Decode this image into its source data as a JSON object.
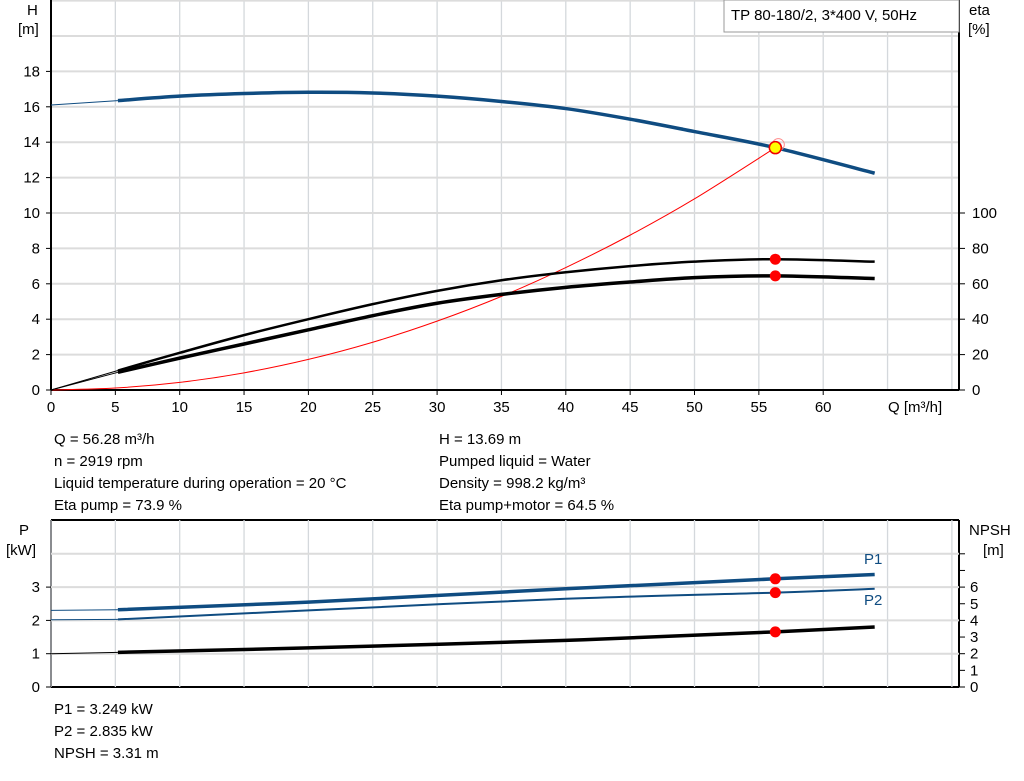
{
  "chart_data": [
    {
      "type": "line",
      "title": "TP 80-180/2, 3*400 V, 50Hz",
      "xlabel": "Q [m³/h]",
      "ylabel": "H\n[m]",
      "ylabel_right": "eta\n[%]",
      "xlim": [
        0,
        70
      ],
      "ylim": [
        0,
        22
      ],
      "ylim_right": [
        0,
        220
      ],
      "x_ticks": [
        0,
        5,
        10,
        15,
        20,
        25,
        30,
        35,
        40,
        45,
        50,
        55,
        60
      ],
      "y_ticks": [
        0,
        2,
        4,
        6,
        8,
        10,
        12,
        14,
        16,
        18
      ],
      "y_right_ticks": [
        0,
        20,
        40,
        60,
        80,
        100
      ],
      "grid": true,
      "series": [
        {
          "name": "H",
          "axis": "left",
          "color": "#0f4c81",
          "x": [
            0,
            5.2,
            10,
            15,
            20,
            25,
            30,
            35,
            40,
            45,
            50,
            56.28,
            64
          ],
          "y": [
            16.1,
            16.35,
            16.6,
            16.75,
            16.82,
            16.78,
            16.6,
            16.3,
            15.9,
            15.3,
            14.6,
            13.69,
            12.25
          ]
        },
        {
          "name": "Eta pump",
          "axis": "right",
          "color": "#000000",
          "x": [
            0,
            5.2,
            10,
            15,
            20,
            25,
            30,
            35,
            40,
            45,
            50,
            56.28,
            64
          ],
          "y": [
            0,
            11,
            21,
            31,
            40,
            48.5,
            56,
            62,
            66.5,
            70,
            72.5,
            73.9,
            72.5
          ]
        },
        {
          "name": "Eta pump+motor",
          "axis": "right",
          "color": "#000000",
          "x": [
            0,
            5.2,
            10,
            15,
            20,
            25,
            30,
            35,
            40,
            45,
            50,
            56.28,
            64
          ],
          "y": [
            0,
            10,
            18,
            26,
            34,
            42,
            49,
            54,
            58,
            61,
            63.5,
            64.5,
            63
          ]
        },
        {
          "name": "System curve",
          "axis": "left",
          "color": "#ff0000",
          "x": [
            0,
            5,
            10,
            15,
            20,
            25,
            30,
            35,
            40,
            45,
            50,
            56.28
          ],
          "y": [
            0,
            0.11,
            0.43,
            0.97,
            1.73,
            2.7,
            3.89,
            5.29,
            6.92,
            8.75,
            10.8,
            13.69
          ]
        }
      ],
      "duty_point": {
        "Q": 56.28,
        "H": 13.69,
        "eta_pump": 73.9,
        "eta_pump_motor": 64.5
      }
    },
    {
      "type": "line",
      "ylabel": "P\n[kW]",
      "ylabel_right": "NPSH\n[m]",
      "xlim": [
        0,
        70
      ],
      "ylim": [
        0,
        4.6
      ],
      "ylim_right": [
        0,
        9.2
      ],
      "y_ticks": [
        0,
        1,
        2,
        3
      ],
      "y_right_ticks": [
        0,
        1,
        2,
        3,
        4,
        5,
        6
      ],
      "grid": true,
      "series": [
        {
          "name": "P1",
          "axis": "left",
          "color": "#0f4c81",
          "x": [
            0,
            5.2,
            20,
            40,
            56.28,
            64
          ],
          "y": [
            2.3,
            2.32,
            2.55,
            2.95,
            3.249,
            3.38
          ]
        },
        {
          "name": "P2",
          "axis": "left",
          "color": "#0f4c81",
          "x": [
            0,
            5.2,
            20,
            40,
            56.28,
            64
          ],
          "y": [
            2.02,
            2.03,
            2.3,
            2.65,
            2.835,
            2.95
          ]
        },
        {
          "name": "NPSH",
          "axis": "right",
          "color": "#000000",
          "x": [
            0,
            5.2,
            20,
            40,
            56.28,
            64
          ],
          "y": [
            2.0,
            2.08,
            2.35,
            2.8,
            3.31,
            3.6
          ]
        }
      ]
    }
  ],
  "info": {
    "q": "Q = 56.28 m³/h",
    "n": "n = 2919 rpm",
    "temp": "Liquid temperature during operation = 20 °C",
    "eta_pump": "Eta pump = 73.9 %",
    "h": "H = 13.69 m",
    "liquid": "Pumped liquid = Water",
    "density": "Density = 998.2 kg/m³",
    "eta_pm": "Eta pump+motor = 64.5 %",
    "p1": "P1 = 3.249 kW",
    "p2": "P2 = 2.835 kW",
    "npsh": "NPSH = 3.31 m"
  },
  "labels": {
    "h": "H",
    "h_unit": "[m]",
    "eta": "eta",
    "eta_unit": "[%]",
    "q": "Q [m³/h]",
    "p": "P",
    "p_unit": "[kW]",
    "npsh": "NPSH",
    "npsh_unit": "[m]",
    "p1": "P1",
    "p2": "P2"
  }
}
